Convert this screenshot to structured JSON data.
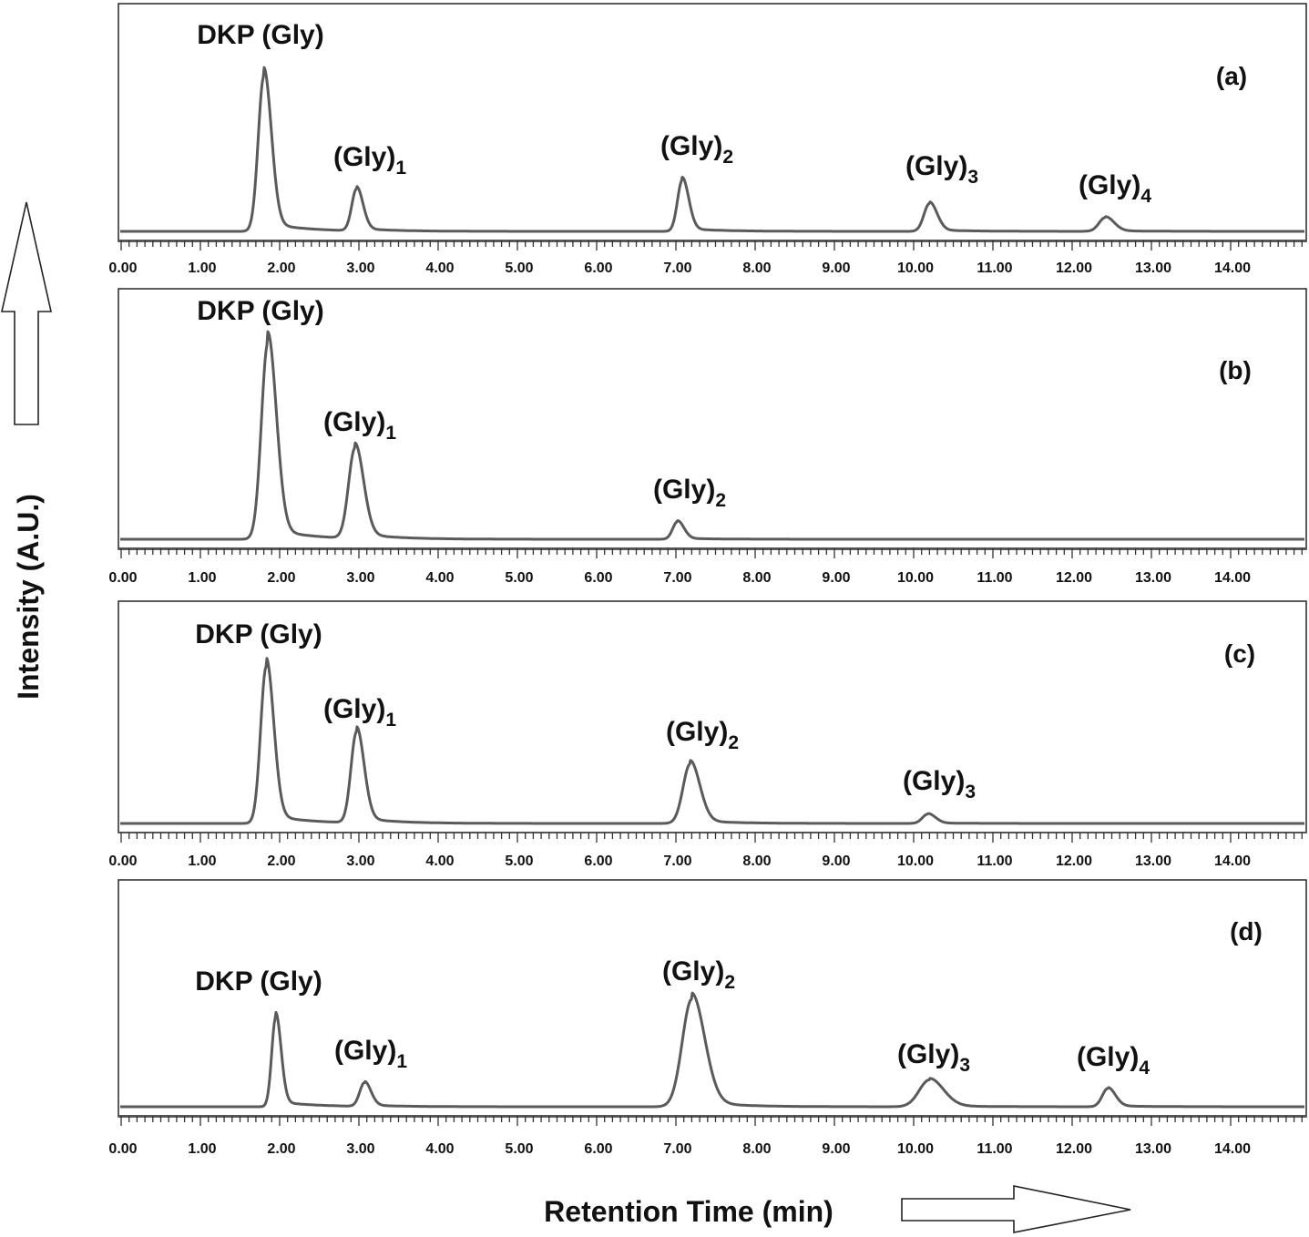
{
  "chart_data": [
    {
      "type": "line",
      "panel_label": "(a)",
      "xlim": [
        0,
        15
      ],
      "x_ticks": [
        "0.00",
        "1.00",
        "2.00",
        "3.00",
        "4.00",
        "5.00",
        "6.00",
        "7.00",
        "8.00",
        "9.00",
        "10.00",
        "11.00",
        "12.00",
        "13.00",
        "14.00"
      ],
      "peaks": [
        {
          "label": "DKP (Gly)",
          "sub": "",
          "x": 1.8,
          "height": 1.0,
          "width": 0.07
        },
        {
          "label": "(Gly)",
          "sub": "1",
          "x": 2.97,
          "height": 0.27,
          "width": 0.06
        },
        {
          "label": "(Gly)",
          "sub": "2",
          "x": 7.08,
          "height": 0.33,
          "width": 0.06
        },
        {
          "label": "(Gly)",
          "sub": "3",
          "x": 10.2,
          "height": 0.18,
          "width": 0.07
        },
        {
          "label": "(Gly)",
          "sub": "4",
          "x": 12.42,
          "height": 0.09,
          "width": 0.08
        }
      ]
    },
    {
      "type": "line",
      "panel_label": "(b)",
      "xlim": [
        0,
        15
      ],
      "x_ticks": [
        "0.00",
        "1.00",
        "2.00",
        "3.00",
        "4.00",
        "5.00",
        "6.00",
        "7.00",
        "8.00",
        "9.00",
        "10.00",
        "11.00",
        "12.00",
        "13.00",
        "14.00"
      ],
      "peaks": [
        {
          "label": "DKP (Gly)",
          "sub": "",
          "x": 1.85,
          "height": 1.0,
          "width": 0.08
        },
        {
          "label": "(Gly)",
          "sub": "1",
          "x": 2.95,
          "height": 0.46,
          "width": 0.08
        },
        {
          "label": "(Gly)",
          "sub": "2",
          "x": 7.02,
          "height": 0.09,
          "width": 0.06
        }
      ]
    },
    {
      "type": "line",
      "panel_label": "(c)",
      "xlim": [
        0,
        15
      ],
      "x_ticks": [
        "0.00",
        "1.00",
        "2.00",
        "3.00",
        "4.00",
        "5.00",
        "6.00",
        "7.00",
        "8.00",
        "9.00",
        "10.00",
        "11.00",
        "12.00",
        "13.00",
        "14.00"
      ],
      "peaks": [
        {
          "label": "DKP (Gly)",
          "sub": "",
          "x": 1.83,
          "height": 1.0,
          "width": 0.07
        },
        {
          "label": "(Gly)",
          "sub": "1",
          "x": 2.97,
          "height": 0.58,
          "width": 0.07
        },
        {
          "label": "(Gly)",
          "sub": "2",
          "x": 7.18,
          "height": 0.38,
          "width": 0.09
        },
        {
          "label": "(Gly)",
          "sub": "3",
          "x": 10.18,
          "height": 0.06,
          "width": 0.07
        }
      ]
    },
    {
      "type": "line",
      "panel_label": "(d)",
      "xlim": [
        0,
        15
      ],
      "x_ticks": [
        "0.00",
        "1.00",
        "2.00",
        "3.00",
        "4.00",
        "5.00",
        "6.00",
        "7.00",
        "8.00",
        "9.00",
        "10.00",
        "11.00",
        "12.00",
        "13.00",
        "14.00"
      ],
      "peaks": [
        {
          "label": "DKP (Gly)",
          "sub": "",
          "x": 1.95,
          "height": 0.83,
          "width": 0.05
        },
        {
          "label": "(Gly)",
          "sub": "1",
          "x": 3.07,
          "height": 0.22,
          "width": 0.06
        },
        {
          "label": "(Gly)",
          "sub": "2",
          "x": 7.2,
          "height": 1.0,
          "width": 0.12
        },
        {
          "label": "(Gly)",
          "sub": "3",
          "x": 10.2,
          "height": 0.25,
          "width": 0.13
        },
        {
          "label": "(Gly)",
          "sub": "4",
          "x": 12.45,
          "height": 0.17,
          "width": 0.07
        }
      ]
    }
  ],
  "axes": {
    "ylabel": "Intensity (A.U.)",
    "xlabel": "Retention Time (min)"
  }
}
